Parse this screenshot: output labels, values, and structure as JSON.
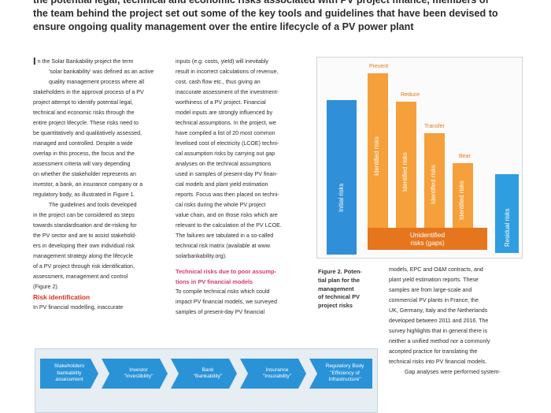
{
  "intro": {
    "lines": [
      "the potential legal, technical and economic risks associated with PV project finance, members of",
      "the team behind the project set out some of the key tools and guidelines that have been devised to",
      "ensure ongoing quality management over the entire lifecycle of a PV power plant"
    ]
  },
  "col1": {
    "dropcap": "I",
    "lines": [
      "n the Solar Bankability project the term",
      "'solar bankability' was defined as an active",
      "quality management process where all",
      "stakeholders in the approval process of a PV",
      "project attempt to identify potential legal,",
      "technical and economic risks through the",
      "entire project lifecycle. These risks need to",
      "be quantitatively and qualitatively assessed,",
      "managed and controlled. Despite a wide",
      "overlap in this process, the focus and the",
      "assessment criteria will vary depending",
      "on whether the stakeholder represents an",
      "investor, a bank, an insurance company or a",
      "regulatory body, as illustrated in Figure 1."
    ],
    "lines2": [
      "The guidelines and tools developed",
      "in the project can be considered as steps",
      "towards standardisation and de-risking for",
      "the PV sector and are to assist stakehold-",
      "ers in developing their own individual risk",
      "management strategy along the lifecycle",
      "of a PV project through risk identification,",
      "assessment, management and control",
      "(Figure 2)."
    ],
    "heading": "Risk identification",
    "lines3": [
      "In PV financial modelling, inaccurate"
    ]
  },
  "col2": {
    "lines": [
      "inputs (e.g. costs, yield) will inevitably",
      "result in incorrect calculations of revenue,",
      "cost, cash flow etc., thus giving an",
      "inaccurate assessment of the investment-",
      "worthiness of a PV project. Financial",
      "model inputs are strongly influenced by",
      "technical assumptions. In the project, we",
      "have compiled a list of 20 most common",
      "levelised cost of electricity (LCOE) techni-",
      "cal assumption risks by carrying out gap",
      "analyses on the technical assumptions",
      "used in samples of present-day PV finan-",
      "cial models and plant yield estimation",
      "reports. Focus was then placed on techni-",
      "cal risks during the whole PV project",
      "value chain, and on those risks which are",
      "relevant to the calculation of the PV LCOE.",
      "The failures are tabulated in a so-called",
      "technical risk matrix (available at www.",
      "solarbankability.org)."
    ],
    "heading_lines": [
      "Technical risks due to poor assump-",
      "tions in PV financial models"
    ],
    "lines2": [
      "To compile technical risks which could",
      "impact PV financial models, we surveyed",
      "samples of present-day PV financial"
    ]
  },
  "col3": {
    "lines": [
      "models, EPC and O&M contracts, and",
      "plant yield estimation reports. These",
      "samples are from large-scale and",
      "commercial PV plants in France, the",
      "UK, Germany, Italy and the Netherlands",
      "developed between 2011 and 2016. The",
      "survey highlights that in general there is",
      "neither a unified method nor a commonly",
      "accepted practice for translating the",
      "technical risks into PV financial models."
    ],
    "lines2": [
      "Gap analyses were performed system-"
    ]
  },
  "figure2": {
    "caption_lines": [
      "Figure 2. Poten-",
      "tial plan for the",
      "management",
      "of technical PV",
      "project risks"
    ],
    "initial": "Initial risks",
    "prevent": "Prevent",
    "reduce": "Reduce",
    "transfer": "Transfer",
    "bear": "Bear",
    "residual": "Residual risks",
    "bar_labels": [
      "Identified risks",
      "Identified risks",
      "Identified risks",
      "Identified risks"
    ],
    "unidentified_line1": "Unidentified",
    "unidentified_line2": "risks (gaps)",
    "colors": {
      "initial": "#2f8fd9",
      "orange": "#f5a03a",
      "dark_orange": "#e6761e",
      "residual": "#2e9ee0"
    }
  },
  "figure1": {
    "boxes": [
      {
        "l1": "Stakeholders",
        "l2": "bankability",
        "l3": "assessment"
      },
      {
        "l1": "Investor",
        "l2": "\"Investibility\"",
        "l3": ""
      },
      {
        "l1": "Bank",
        "l2": "\"Bankability\"",
        "l3": ""
      },
      {
        "l1": "Insurance",
        "l2": "\"Insurability\"",
        "l3": ""
      },
      {
        "l1": "Regulatory Body",
        "l2": "\"Efficiency of",
        "l3": "Infrastructure\""
      }
    ],
    "color": "#2a93d8"
  }
}
